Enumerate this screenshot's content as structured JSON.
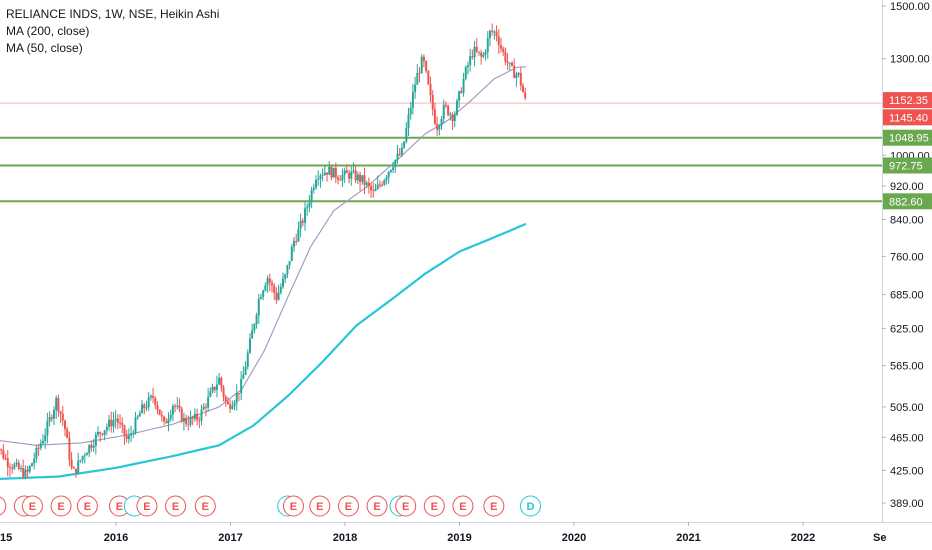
{
  "legend": {
    "title": "RELIANCE INDS, 1W, NSE, Heikin Ashi",
    "ma200": "MA (200, close)",
    "ma50": "MA (50, close)"
  },
  "colors": {
    "up": "#26a69a",
    "down": "#ef5350",
    "ma200": "#26c6da",
    "ma50": "#9e94c2",
    "hline": "#6aa84f",
    "last_price_line": "#f4b8b8",
    "event_e": "#ef5350",
    "event_d": "#26c6da"
  },
  "chart_data": {
    "type": "candlestick",
    "y_scale": "log",
    "ylim": [
      375,
      1520
    ],
    "xlim": [
      2014.92,
      2022.62
    ],
    "y_ticks": [
      "1500.00",
      "1300.00",
      "1060.00",
      "1000.00",
      "920.00",
      "840.00",
      "760.00",
      "685.00",
      "625.00",
      "565.00",
      "505.00",
      "465.00",
      "425.00",
      "389.00"
    ],
    "x_ticks": [
      "2016",
      "2017",
      "2018",
      "2019",
      "2020",
      "2021",
      "2022"
    ],
    "x_tick_years": [
      2016,
      2017,
      2018,
      2019,
      2020,
      2021,
      2022
    ],
    "x_partial_left": "15",
    "x_partial_right": "Se",
    "horizontal_levels": [
      {
        "value": 1048.95,
        "label": "1048.95"
      },
      {
        "value": 972.75,
        "label": "972.75"
      },
      {
        "value": 882.6,
        "label": "882.60"
      }
    ],
    "price_tags": [
      {
        "value": 1152.35,
        "label": "1152.35",
        "color": "#ef5350"
      },
      {
        "value": 1145.4,
        "label": "1145.40",
        "color": "#ef5350"
      }
    ],
    "close_anchors": [
      [
        2014.92,
        465
      ],
      [
        2015.05,
        435
      ],
      [
        2015.22,
        420
      ],
      [
        2015.38,
        470
      ],
      [
        2015.48,
        515
      ],
      [
        2015.55,
        480
      ],
      [
        2015.62,
        420
      ],
      [
        2015.72,
        445
      ],
      [
        2015.85,
        470
      ],
      [
        2016.0,
        490
      ],
      [
        2016.1,
        460
      ],
      [
        2016.22,
        500
      ],
      [
        2016.33,
        520
      ],
      [
        2016.42,
        480
      ],
      [
        2016.5,
        510
      ],
      [
        2016.6,
        485
      ],
      [
        2016.72,
        490
      ],
      [
        2016.82,
        520
      ],
      [
        2016.9,
        545
      ],
      [
        2016.97,
        505
      ],
      [
        2017.05,
        520
      ],
      [
        2017.1,
        540
      ],
      [
        2017.17,
        600
      ],
      [
        2017.25,
        680
      ],
      [
        2017.32,
        720
      ],
      [
        2017.4,
        680
      ],
      [
        2017.48,
        720
      ],
      [
        2017.55,
        790
      ],
      [
        2017.62,
        830
      ],
      [
        2017.68,
        880
      ],
      [
        2017.75,
        950
      ],
      [
        2017.85,
        960
      ],
      [
        2017.95,
        945
      ],
      [
        2018.05,
        950
      ],
      [
        2018.15,
        935
      ],
      [
        2018.25,
        900
      ],
      [
        2018.35,
        945
      ],
      [
        2018.42,
        980
      ],
      [
        2018.5,
        1010
      ],
      [
        2018.55,
        1100
      ],
      [
        2018.62,
        1230
      ],
      [
        2018.68,
        1300
      ],
      [
        2018.75,
        1160
      ],
      [
        2018.8,
        1080
      ],
      [
        2018.87,
        1140
      ],
      [
        2018.95,
        1110
      ],
      [
        2019.05,
        1250
      ],
      [
        2019.12,
        1330
      ],
      [
        2019.2,
        1300
      ],
      [
        2019.27,
        1400
      ],
      [
        2019.32,
        1395
      ],
      [
        2019.37,
        1330
      ],
      [
        2019.45,
        1260
      ],
      [
        2019.52,
        1240
      ],
      [
        2019.58,
        1150
      ]
    ],
    "ma50_anchors": [
      [
        2014.92,
        462
      ],
      [
        2015.3,
        455
      ],
      [
        2015.7,
        458
      ],
      [
        2016.1,
        468
      ],
      [
        2016.5,
        482
      ],
      [
        2016.9,
        505
      ],
      [
        2017.1,
        530
      ],
      [
        2017.3,
        590
      ],
      [
        2017.5,
        680
      ],
      [
        2017.7,
        780
      ],
      [
        2017.9,
        860
      ],
      [
        2018.2,
        920
      ],
      [
        2018.5,
        1000
      ],
      [
        2018.7,
        1060
      ],
      [
        2018.9,
        1100
      ],
      [
        2019.1,
        1160
      ],
      [
        2019.3,
        1230
      ],
      [
        2019.5,
        1270
      ],
      [
        2019.58,
        1272
      ]
    ],
    "ma200_anchors": [
      [
        2014.92,
        415
      ],
      [
        2015.5,
        418
      ],
      [
        2016.0,
        428
      ],
      [
        2016.5,
        442
      ],
      [
        2016.9,
        455
      ],
      [
        2017.2,
        480
      ],
      [
        2017.5,
        520
      ],
      [
        2017.8,
        570
      ],
      [
        2018.1,
        630
      ],
      [
        2018.4,
        675
      ],
      [
        2018.7,
        725
      ],
      [
        2019.0,
        770
      ],
      [
        2019.3,
        800
      ],
      [
        2019.58,
        830
      ]
    ],
    "events": [
      {
        "label": "E",
        "x": 2014.95,
        "type": "E"
      },
      {
        "label": "",
        "x": 2015.2,
        "type": "E"
      },
      {
        "label": "E",
        "x": 2015.27,
        "type": "E"
      },
      {
        "label": "E",
        "x": 2015.52,
        "type": "E"
      },
      {
        "label": "E",
        "x": 2015.75,
        "type": "E"
      },
      {
        "label": "E",
        "x": 2016.03,
        "type": "E"
      },
      {
        "label": "",
        "x": 2016.16,
        "type": "D"
      },
      {
        "label": "E",
        "x": 2016.27,
        "type": "E"
      },
      {
        "label": "E",
        "x": 2016.52,
        "type": "E"
      },
      {
        "label": "E",
        "x": 2016.78,
        "type": "E"
      },
      {
        "label": "",
        "x": 2017.5,
        "type": "D"
      },
      {
        "label": "E",
        "x": 2017.55,
        "type": "E"
      },
      {
        "label": "E",
        "x": 2017.78,
        "type": "E"
      },
      {
        "label": "E",
        "x": 2018.03,
        "type": "E"
      },
      {
        "label": "E",
        "x": 2018.28,
        "type": "E"
      },
      {
        "label": "",
        "x": 2018.48,
        "type": "D"
      },
      {
        "label": "E",
        "x": 2018.53,
        "type": "E"
      },
      {
        "label": "E",
        "x": 2018.78,
        "type": "E"
      },
      {
        "label": "E",
        "x": 2019.03,
        "type": "E"
      },
      {
        "label": "E",
        "x": 2019.3,
        "type": "E"
      },
      {
        "label": "D",
        "x": 2019.62,
        "type": "D"
      }
    ]
  }
}
